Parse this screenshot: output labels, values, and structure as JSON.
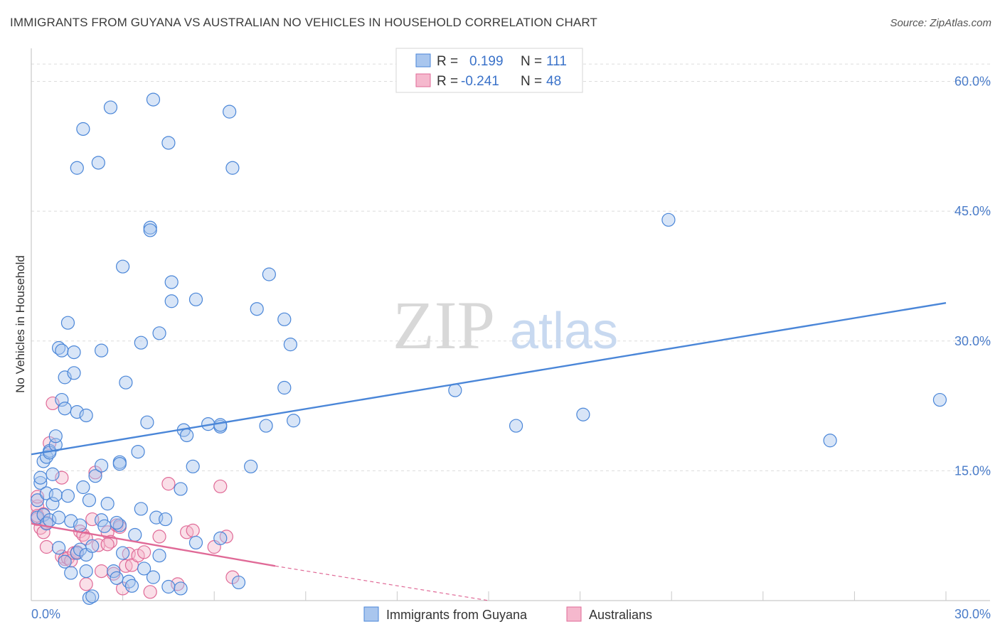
{
  "header": {
    "title": "IMMIGRANTS FROM GUYANA VS AUSTRALIAN NO VEHICLES IN HOUSEHOLD CORRELATION CHART",
    "source": "Source: ZipAtlas.com"
  },
  "watermark": {
    "part1": "ZIP",
    "part2": "atlas"
  },
  "legend": {
    "rows": [
      {
        "r_label": "R =",
        "r_value": "0.199",
        "n_label": "N =",
        "n_value": "111"
      },
      {
        "r_label": "R =",
        "r_value": "-0.241",
        "n_label": "N =",
        "n_value": "48"
      }
    ]
  },
  "bottom_legend": {
    "series1": "Immigrants from Guyana",
    "series2": "Australians"
  },
  "colors": {
    "blue": "#4a86d8",
    "blue_fill": "#a9c6ee",
    "pink": "#e06a97",
    "pink_fill": "#f5b8cd",
    "tick": "#4a7cc9"
  },
  "chart_data": {
    "type": "scatter",
    "title": "IMMIGRANTS FROM GUYANA VS AUSTRALIAN NO VEHICLES IN HOUSEHOLD CORRELATION CHART",
    "xlabel": "",
    "ylabel": "No Vehicles in Household",
    "xlim": [
      0,
      30
    ],
    "ylim": [
      0,
      63
    ],
    "x_tick_labels": [
      "0.0%",
      "30.0%"
    ],
    "y_ticks": [
      15,
      30,
      45,
      60
    ],
    "y_tick_labels": [
      "15.0%",
      "30.0%",
      "45.0%",
      "60.0%"
    ],
    "grid": true,
    "legend_position": "top-center",
    "series": [
      {
        "name": "Immigrants from Guyana",
        "color": "#4a86d8",
        "trend": {
          "x": [
            0,
            30
          ],
          "y": [
            16.9,
            34.4
          ]
        },
        "points": [
          [
            0.2,
            11.6
          ],
          [
            0.2,
            9.6
          ],
          [
            0.3,
            13.6
          ],
          [
            0.3,
            14.2
          ],
          [
            0.4,
            16.1
          ],
          [
            0.4,
            9.9
          ],
          [
            0.5,
            12.4
          ],
          [
            0.5,
            16.6
          ],
          [
            0.5,
            8.9
          ],
          [
            0.6,
            17.3
          ],
          [
            0.6,
            9.3
          ],
          [
            0.6,
            17.1
          ],
          [
            0.7,
            14.6
          ],
          [
            0.7,
            11.2
          ],
          [
            0.8,
            12.2
          ],
          [
            0.8,
            18.0
          ],
          [
            0.8,
            19.0
          ],
          [
            0.9,
            6.1
          ],
          [
            0.9,
            29.2
          ],
          [
            1.0,
            28.9
          ],
          [
            1.0,
            23.2
          ],
          [
            1.1,
            25.8
          ],
          [
            1.1,
            22.2
          ],
          [
            1.2,
            32.1
          ],
          [
            1.2,
            12.1
          ],
          [
            1.3,
            3.2
          ],
          [
            1.3,
            9.2
          ],
          [
            1.4,
            26.3
          ],
          [
            1.4,
            28.7
          ],
          [
            1.5,
            21.8
          ],
          [
            1.5,
            5.5
          ],
          [
            1.5,
            50.0
          ],
          [
            1.6,
            5.9
          ],
          [
            1.6,
            8.7
          ],
          [
            1.7,
            54.5
          ],
          [
            1.7,
            13.1
          ],
          [
            1.8,
            21.4
          ],
          [
            1.8,
            3.4
          ],
          [
            1.8,
            5.3
          ],
          [
            1.9,
            0.3
          ],
          [
            1.9,
            11.6
          ],
          [
            2.0,
            6.3
          ],
          [
            2.1,
            14.4
          ],
          [
            2.2,
            50.6
          ],
          [
            2.3,
            15.6
          ],
          [
            2.3,
            28.9
          ],
          [
            2.3,
            9.3
          ],
          [
            2.4,
            8.6
          ],
          [
            2.5,
            11.2
          ],
          [
            2.6,
            57.0
          ],
          [
            2.7,
            3.4
          ],
          [
            2.8,
            2.6
          ],
          [
            2.9,
            16.0
          ],
          [
            2.9,
            15.8
          ],
          [
            2.9,
            8.7
          ],
          [
            3.0,
            38.6
          ],
          [
            3.0,
            5.5
          ],
          [
            3.1,
            25.2
          ],
          [
            3.2,
            2.2
          ],
          [
            3.3,
            1.7
          ],
          [
            3.4,
            7.6
          ],
          [
            3.5,
            17.2
          ],
          [
            3.6,
            29.8
          ],
          [
            3.6,
            10.6
          ],
          [
            3.7,
            3.7
          ],
          [
            3.8,
            20.6
          ],
          [
            3.9,
            43.1
          ],
          [
            3.9,
            42.8
          ],
          [
            4.0,
            2.7
          ],
          [
            4.0,
            57.9
          ],
          [
            4.1,
            9.6
          ],
          [
            4.2,
            30.9
          ],
          [
            4.2,
            5.2
          ],
          [
            4.4,
            9.4
          ],
          [
            4.5,
            52.9
          ],
          [
            4.5,
            1.6
          ],
          [
            4.6,
            34.6
          ],
          [
            4.6,
            36.8
          ],
          [
            4.9,
            12.9
          ],
          [
            5.0,
            19.7
          ],
          [
            5.1,
            19.1
          ],
          [
            5.3,
            15.5
          ],
          [
            5.4,
            6.7
          ],
          [
            5.4,
            34.8
          ],
          [
            5.8,
            20.4
          ],
          [
            6.2,
            20.1
          ],
          [
            6.2,
            20.3
          ],
          [
            6.2,
            7.2
          ],
          [
            6.5,
            56.5
          ],
          [
            6.6,
            50.0
          ],
          [
            6.8,
            2.1
          ],
          [
            7.2,
            15.5
          ],
          [
            7.4,
            33.7
          ],
          [
            7.7,
            20.2
          ],
          [
            7.8,
            37.7
          ],
          [
            8.3,
            32.5
          ],
          [
            8.3,
            24.6
          ],
          [
            8.5,
            29.6
          ],
          [
            8.6,
            20.8
          ],
          [
            13.9,
            24.3
          ],
          [
            15.9,
            20.2
          ],
          [
            18.1,
            21.5
          ],
          [
            20.9,
            44.0
          ],
          [
            26.2,
            18.5
          ],
          [
            29.8,
            23.2
          ],
          [
            2.0,
            0.5
          ],
          [
            1.1,
            4.5
          ],
          [
            0.9,
            9.6
          ],
          [
            2.8,
            9.0
          ],
          [
            4.9,
            1.4
          ]
        ]
      },
      {
        "name": "Australians",
        "color": "#e06a97",
        "trend": {
          "x": [
            0,
            8.0
          ],
          "y": [
            8.9,
            4.0
          ]
        },
        "trend_dashed": {
          "x": [
            8.0,
            15.0
          ],
          "y": [
            4.0,
            0.0
          ]
        },
        "points": [
          [
            0.2,
            10.9
          ],
          [
            0.2,
            12.0
          ],
          [
            0.2,
            9.4
          ],
          [
            0.3,
            8.4
          ],
          [
            0.4,
            10.0
          ],
          [
            0.4,
            7.9
          ],
          [
            0.5,
            9.0
          ],
          [
            0.5,
            6.2
          ],
          [
            0.6,
            18.2
          ],
          [
            0.7,
            22.8
          ],
          [
            1.0,
            5.1
          ],
          [
            1.0,
            14.2
          ],
          [
            1.1,
            4.8
          ],
          [
            1.2,
            4.9
          ],
          [
            1.3,
            4.6
          ],
          [
            1.4,
            5.5
          ],
          [
            1.5,
            5.6
          ],
          [
            1.6,
            8.0
          ],
          [
            1.7,
            7.6
          ],
          [
            1.8,
            1.9
          ],
          [
            2.0,
            9.4
          ],
          [
            2.1,
            14.8
          ],
          [
            2.2,
            6.4
          ],
          [
            2.3,
            3.4
          ],
          [
            2.5,
            7.9
          ],
          [
            2.6,
            6.8
          ],
          [
            2.7,
            3.1
          ],
          [
            2.8,
            8.7
          ],
          [
            3.0,
            1.4
          ],
          [
            3.1,
            4.0
          ],
          [
            3.2,
            5.4
          ],
          [
            3.3,
            4.1
          ],
          [
            3.5,
            5.2
          ],
          [
            3.7,
            5.6
          ],
          [
            3.9,
            1.0
          ],
          [
            4.2,
            7.4
          ],
          [
            4.5,
            13.5
          ],
          [
            4.8,
            1.9
          ],
          [
            5.1,
            7.9
          ],
          [
            5.3,
            8.1
          ],
          [
            6.0,
            6.2
          ],
          [
            6.2,
            13.2
          ],
          [
            6.4,
            7.4
          ],
          [
            6.6,
            2.7
          ],
          [
            2.5,
            6.5
          ],
          [
            0.2,
            9.8
          ],
          [
            1.8,
            7.2
          ],
          [
            2.9,
            8.5
          ]
        ]
      }
    ]
  }
}
